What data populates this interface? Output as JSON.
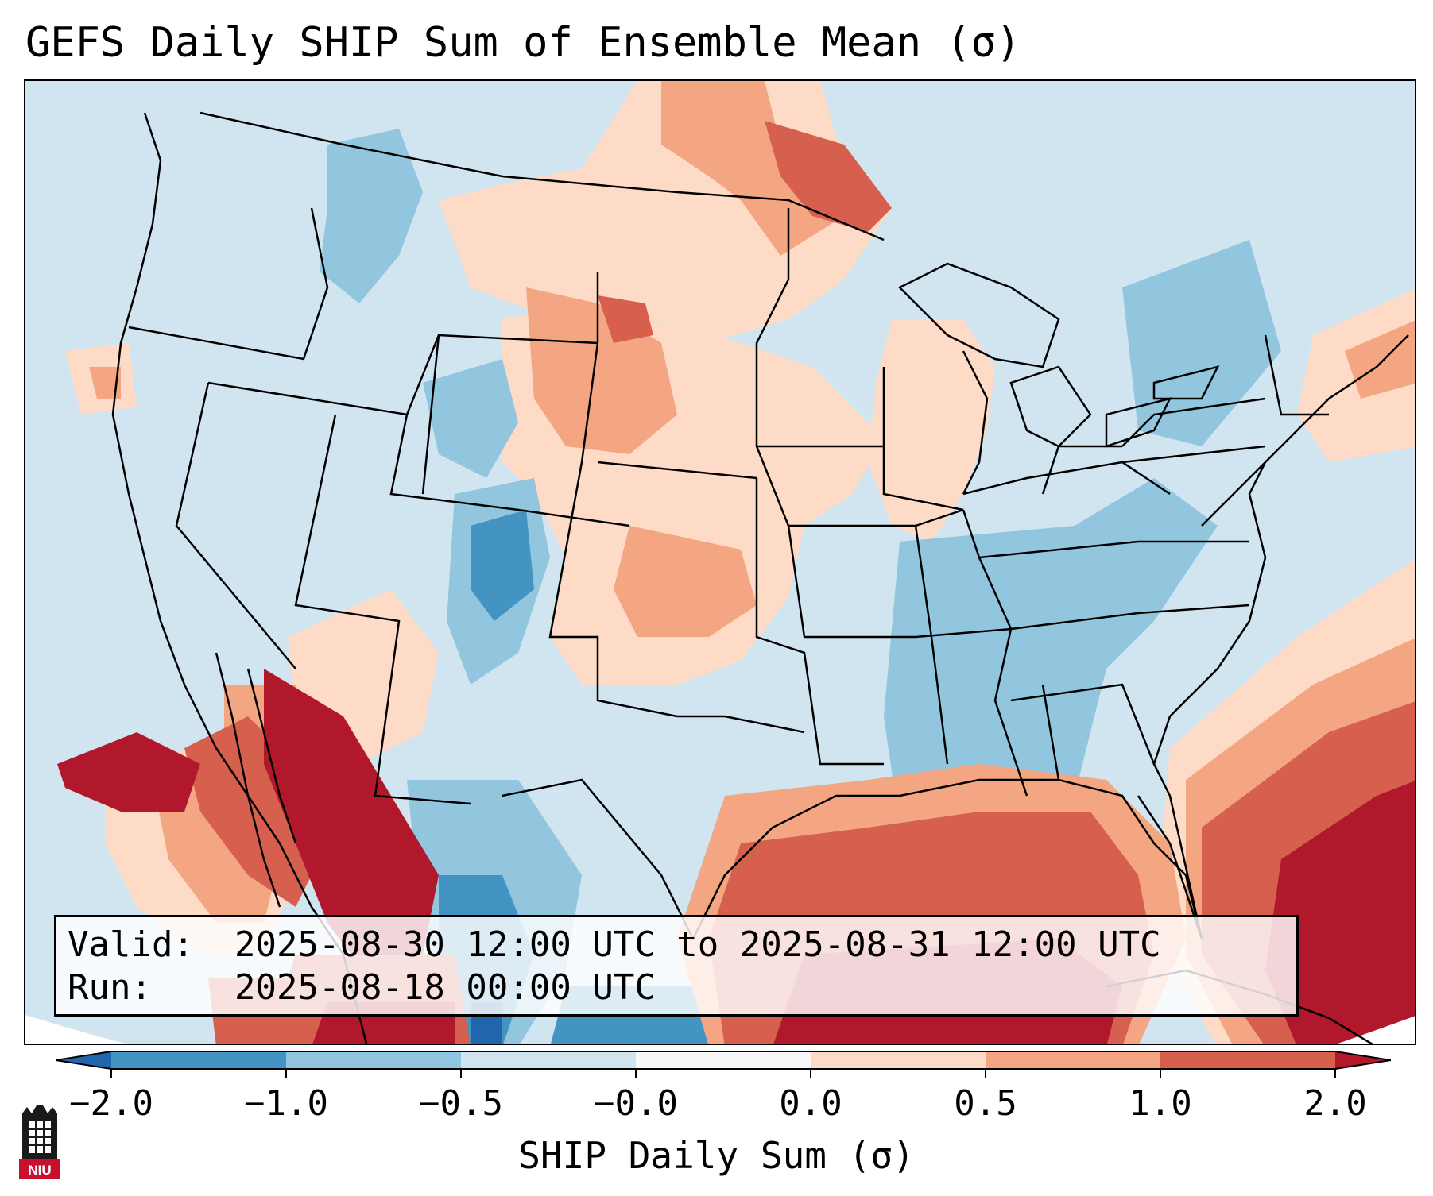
{
  "title": "GEFS Daily SHIP Sum of Ensemble Mean (σ)",
  "info": {
    "valid_label": "Valid:",
    "valid_value": "2025-08-30 12:00 UTC to 2025-08-31 12:00 UTC",
    "run_label": "Run:",
    "run_value": "2025-08-18 00:00 UTC"
  },
  "colorbar": {
    "label": "SHIP Daily Sum (σ)",
    "ticks": [
      "−2.0",
      "−1.0",
      "−0.5",
      "−0.0",
      "0.0",
      "0.5",
      "1.0",
      "2.0"
    ],
    "bins": [
      {
        "range": "<-2.0",
        "color": "#2166ac"
      },
      {
        "range": "-2.0 to -1.0",
        "color": "#4393c3"
      },
      {
        "range": "-1.0 to -0.5",
        "color": "#92c5de"
      },
      {
        "range": "-0.5 to -0.0",
        "color": "#d1e5f0"
      },
      {
        "range": "-0.0 to 0.0",
        "color": "#f7f7f7"
      },
      {
        "range": "0.0 to 0.5",
        "color": "#fddbc7"
      },
      {
        "range": "0.5 to 1.0",
        "color": "#f4a582"
      },
      {
        "range": "1.0 to 2.0",
        "color": "#d6604d"
      },
      {
        "range": ">2.0",
        "color": "#b2182b"
      }
    ]
  },
  "logo": {
    "text": "NIU",
    "icon": "university-tower-icon"
  }
}
